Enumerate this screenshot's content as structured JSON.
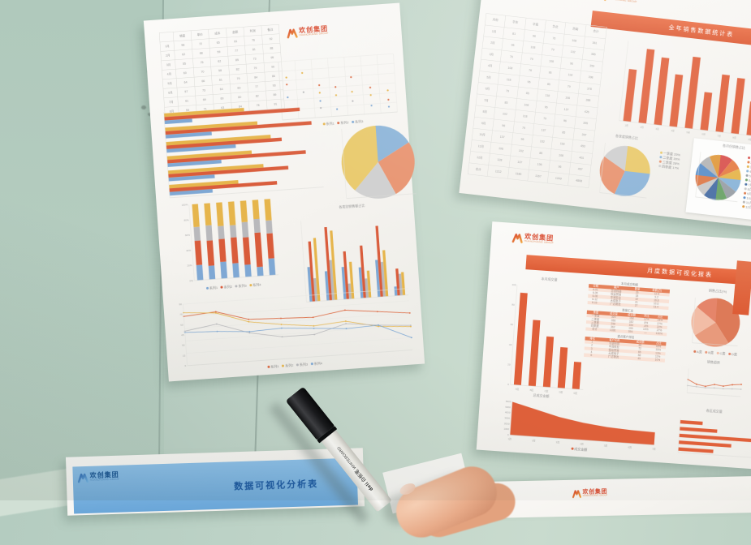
{
  "logo": {
    "name": "欢创集团",
    "tagline": "HUANCHUANG GROUP"
  },
  "colors": {
    "wall": "#bcd2c6",
    "accent_red": "#d8472b",
    "banner_orange": "#e06543",
    "chart_yellow": "#e6b54c",
    "chart_blue": "#7fa8d4",
    "chart_gray": "#b9b9bc",
    "chart_orange": "#dd6b44",
    "blue_banner": "#79b2e0",
    "blue_title": "#1d5fa8"
  },
  "left_paper": {
    "table": {
      "rows": [
        [
          "",
          "销量",
          "单价",
          "成本",
          "金额",
          "利润",
          "备注"
        ],
        [
          "1月",
          "58",
          "72",
          "65",
          "81",
          "76",
          "92"
        ],
        [
          "2月",
          "62",
          "68",
          "59",
          "77",
          "81",
          "88"
        ],
        [
          "3月",
          "55",
          "75",
          "62",
          "85",
          "73",
          "95"
        ],
        [
          "4月",
          "60",
          "70",
          "58",
          "82",
          "79",
          "90"
        ],
        [
          "5月",
          "64",
          "66",
          "61",
          "79",
          "84",
          "86"
        ],
        [
          "6月",
          "57",
          "73",
          "64",
          "83",
          "77",
          "93"
        ],
        [
          "7月",
          "61",
          "69",
          "60",
          "80",
          "82",
          "89"
        ],
        [
          "8月",
          "59",
          "71",
          "63",
          "84",
          "78",
          "91"
        ]
      ]
    },
    "scatter": {
      "type": "scatter",
      "grid": true,
      "points": [
        {
          "x": 6,
          "y": 28,
          "c": "#e6b54c"
        },
        {
          "x": 6,
          "y": 40,
          "c": "#dd6b44"
        },
        {
          "x": 6,
          "y": 62,
          "c": "#7fa8d4"
        },
        {
          "x": 20,
          "y": 22,
          "c": "#e6b54c"
        },
        {
          "x": 20,
          "y": 55,
          "c": "#b9b9bc"
        },
        {
          "x": 34,
          "y": 45,
          "c": "#dd6b44"
        },
        {
          "x": 34,
          "y": 58,
          "c": "#e6b54c"
        },
        {
          "x": 34,
          "y": 72,
          "c": "#7fa8d4"
        },
        {
          "x": 34,
          "y": 84,
          "c": "#b9b9bc"
        },
        {
          "x": 48,
          "y": 50,
          "c": "#dd6b44"
        },
        {
          "x": 48,
          "y": 64,
          "c": "#e6b54c"
        },
        {
          "x": 48,
          "y": 88,
          "c": "#7fa8d4"
        },
        {
          "x": 62,
          "y": 35,
          "c": "#dd6b44"
        },
        {
          "x": 62,
          "y": 60,
          "c": "#e6b54c"
        },
        {
          "x": 62,
          "y": 76,
          "c": "#b9b9bc"
        },
        {
          "x": 78,
          "y": 55,
          "c": "#dd6b44"
        },
        {
          "x": 78,
          "y": 68,
          "c": "#e6b54c"
        },
        {
          "x": 78,
          "y": 86,
          "c": "#7fa8d4"
        },
        {
          "x": 93,
          "y": 62,
          "c": "#e6b54c"
        },
        {
          "x": 93,
          "y": 78,
          "c": "#dd6b44"
        },
        {
          "x": 93,
          "y": 90,
          "c": "#7fa8d4"
        }
      ],
      "legend": [
        {
          "label": "系列1",
          "color": "#e6b54c"
        },
        {
          "label": "系列2",
          "color": "#dd6b44"
        },
        {
          "label": "系列3",
          "color": "#7fa8d4"
        }
      ]
    },
    "hbars": {
      "type": "groupedh",
      "groups": [
        [
          52,
          88,
          18
        ],
        [
          60,
          95,
          30
        ],
        [
          68,
          75,
          45
        ],
        [
          55,
          90,
          35
        ],
        [
          62,
          78,
          30
        ],
        [
          45,
          70,
          28
        ]
      ],
      "colors": [
        "#e6b54c",
        "#d95c3b",
        "#7fa8d4"
      ]
    },
    "pie": {
      "type": "pie",
      "caption": "各类别销售额占比",
      "slices": [
        {
          "value": 17,
          "color": "#8cb4d8"
        },
        {
          "value": 26,
          "color": "#e8936f"
        },
        {
          "value": 19,
          "color": "#cfcfcf"
        },
        {
          "value": 38,
          "color": "#e9c96a"
        }
      ]
    },
    "stacked": {
      "type": "stacked",
      "columns": [
        [
          20,
          32,
          18,
          30
        ],
        [
          18,
          33,
          20,
          29
        ],
        [
          22,
          30,
          17,
          31
        ],
        [
          19,
          34,
          16,
          31
        ],
        [
          16,
          36,
          20,
          28
        ],
        [
          12,
          45,
          18,
          25
        ],
        [
          22,
          33,
          17,
          28
        ]
      ],
      "colors": [
        "#7fa8d4",
        "#d95c3b",
        "#b9b9bc",
        "#e6b54c"
      ],
      "ylabels": [
        "100%",
        "80%",
        "60%",
        "40%",
        "20%",
        "0%"
      ],
      "legend": [
        {
          "label": "系列1",
          "color": "#7fa8d4"
        },
        {
          "label": "系列2",
          "color": "#d95c3b"
        },
        {
          "label": "系列3",
          "color": "#b9b9bc"
        },
        {
          "label": "系列4",
          "color": "#e6b54c"
        }
      ]
    },
    "grouped": {
      "type": "groupedv",
      "groups": [
        [
          45,
          78,
          30,
          82
        ],
        [
          38,
          95,
          52,
          90
        ],
        [
          42,
          62,
          20,
          48
        ],
        [
          40,
          68,
          25,
          35
        ],
        [
          48,
          92,
          45,
          60
        ],
        [
          12,
          35,
          28,
          30
        ]
      ],
      "colors": [
        "#7fa8d4",
        "#d95c3b",
        "#b9b9bc",
        "#e6b54c"
      ]
    },
    "lines": {
      "type": "lines",
      "grid": true,
      "ylabels": [
        "90",
        "75",
        "60",
        "45",
        "30",
        "15",
        "0"
      ],
      "series": [
        {
          "color": "#dd6b44",
          "values": [
            80,
            84,
            68,
            66,
            64,
            72,
            66,
            60
          ]
        },
        {
          "color": "#e6b54c",
          "values": [
            86,
            82,
            64,
            56,
            50,
            54,
            42,
            38
          ]
        },
        {
          "color": "#b9b9bc",
          "values": [
            56,
            64,
            46,
            36,
            36,
            50,
            44,
            40
          ]
        },
        {
          "color": "#7fa8d4",
          "values": [
            54,
            52,
            48,
            50,
            46,
            42,
            44,
            20
          ]
        }
      ],
      "legend": [
        {
          "label": "系列1",
          "color": "#dd6b44"
        },
        {
          "label": "系列2",
          "color": "#e6b54c"
        },
        {
          "label": "系列3",
          "color": "#b9b9bc"
        },
        {
          "label": "系列4",
          "color": "#7fa8d4"
        }
      ]
    }
  },
  "top_right_paper": {
    "banner_title": "全年销售数据统计表",
    "table": {
      "rows": [
        [
          "月份",
          "华东",
          "华南",
          "华北",
          "西南",
          "合计"
        ],
        [
          "1月",
          "81",
          "96",
          "76",
          "108",
          "361"
        ],
        [
          "2月",
          "96",
          "108",
          "79",
          "102",
          "385"
        ],
        [
          "3月",
          "76",
          "79",
          "108",
          "96",
          "359"
        ],
        [
          "4月",
          "108",
          "76",
          "96",
          "118",
          "398"
        ],
        [
          "5月",
          "118",
          "96",
          "85",
          "79",
          "378"
        ],
        [
          "6月",
          "79",
          "85",
          "118",
          "106",
          "388"
        ],
        [
          "7月",
          "85",
          "108",
          "96",
          "137",
          "426"
        ],
        [
          "8月",
          "102",
          "118",
          "79",
          "96",
          "395"
        ],
        [
          "9月",
          "96",
          "79",
          "137",
          "85",
          "397"
        ],
        [
          "10月",
          "137",
          "96",
          "102",
          "118",
          "453"
        ],
        [
          "11月",
          "106",
          "102",
          "85",
          "108",
          "401"
        ],
        [
          "12月",
          "128",
          "137",
          "106",
          "96",
          "467"
        ],
        [
          "合计",
          "1212",
          "1180",
          "1167",
          "1249",
          "4808"
        ]
      ]
    },
    "bars": {
      "type": "vbars",
      "values": [
        62,
        88,
        80,
        62,
        85,
        45,
        68,
        66,
        40
      ],
      "color": "#e0603a",
      "xlabels": [
        "1月",
        "2月",
        "3月",
        "4月",
        "5月",
        "6月",
        "7月",
        "8月",
        "9月"
      ]
    },
    "pie_left": {
      "type": "pie",
      "title": "各季度销售占比",
      "slices": [
        {
          "label": "一季度 25%",
          "value": 25,
          "color": "#e9c96a"
        },
        {
          "label": "二季度 30%",
          "value": 30,
          "color": "#8cb4d8"
        },
        {
          "label": "三季度 28%",
          "value": 28,
          "color": "#e8936f"
        },
        {
          "label": "四季度 17%",
          "value": 17,
          "color": "#cfcfcf"
        }
      ]
    },
    "pie_right": {
      "type": "pie",
      "title": "各月份销售占比",
      "slices": [
        {
          "label": "1月",
          "value": 9,
          "color": "#d9534f"
        },
        {
          "label": "2月",
          "value": 8,
          "color": "#e67e45"
        },
        {
          "label": "3月",
          "value": 8,
          "color": "#e6b54c"
        },
        {
          "label": "4月",
          "value": 9,
          "color": "#8ab4d8"
        },
        {
          "label": "5月",
          "value": 8,
          "color": "#9aa0a6"
        },
        {
          "label": "6月",
          "value": 8,
          "color": "#6ba368"
        },
        {
          "label": "7月",
          "value": 9,
          "color": "#4a6fa5"
        },
        {
          "label": "8月",
          "value": 8,
          "color": "#c9c9c9"
        },
        {
          "label": "9月",
          "value": 8,
          "color": "#dd7a4a"
        },
        {
          "label": "10月",
          "value": 9,
          "color": "#5b8fc9"
        },
        {
          "label": "11月",
          "value": 8,
          "color": "#b5b5b5"
        },
        {
          "label": "12月",
          "value": 8,
          "color": "#e09a3e"
        }
      ]
    }
  },
  "mid_right_paper": {
    "banner_title": "月度数据可视化报表",
    "bars": {
      "type": "vbars",
      "title": "本月成交量",
      "values": [
        95,
        68,
        52,
        42,
        28
      ],
      "color": "#e0603a",
      "xlabels": [
        "A区",
        "B区",
        "C区",
        "D区",
        "E区"
      ],
      "ylabels": [
        "100",
        "80",
        "60",
        "40",
        "20",
        "0"
      ]
    },
    "sections": [
      {
        "title": "本月成交明细",
        "header": [
          "日期",
          "客户",
          "数量",
          "金额(万)"
        ],
        "rows": [
          [
            "6-01",
            "华创科技",
            "25",
            "12.5"
          ],
          [
            "6-05",
            "恒远贸易",
            "18",
            "9.2"
          ],
          [
            "6-08",
            "中润实业",
            "32",
            "16.8"
          ],
          [
            "6-12",
            "天成电子",
            "21",
            "10.6"
          ],
          [
            "6-15",
            "广达物流",
            "27",
            "13.4"
          ]
        ]
      },
      {
        "title": "季度汇总",
        "header": [
          "季度",
          "成交量",
          "成交额",
          "环比",
          "占比"
        ],
        "rows": [
          [
            "一季度",
            "320",
            "168",
            "12%",
            "24%"
          ],
          [
            "二季度",
            "356",
            "182",
            "8%",
            "27%"
          ],
          [
            "三季度",
            "298",
            "154",
            "-6%",
            "22%"
          ],
          [
            "四季度",
            "362",
            "190",
            "10%",
            "27%"
          ],
          [
            "合计",
            "1336",
            "694",
            "—",
            "100%"
          ]
        ]
      },
      {
        "title": "重点客户排名",
        "header": [
          "排名",
          "客户名称",
          "成交额",
          "占比"
        ],
        "rows": [
          [
            "1",
            "华创科技",
            "86",
            "18%"
          ],
          [
            "2",
            "中润实业",
            "72",
            "15%"
          ],
          [
            "3",
            "恒远贸易",
            "65",
            "13%"
          ],
          [
            "4",
            "天成电子",
            "58",
            "12%"
          ],
          [
            "5",
            "广达物流",
            "49",
            "10%"
          ]
        ]
      }
    ],
    "pie": {
      "type": "pie",
      "title": "销售占比(%)",
      "slices": [
        {
          "label": "A类",
          "value": 40,
          "color": "#dd7a58"
        },
        {
          "label": "B类",
          "value": 25,
          "color": "#e89a7c"
        },
        {
          "label": "C类",
          "value": 20,
          "color": "#f2bda6"
        },
        {
          "label": "D类",
          "value": 15,
          "color": "#e5856a"
        }
      ],
      "legend": [
        {
          "label": "A类",
          "color": "#dd7a58"
        },
        {
          "label": "B类",
          "color": "#e89a7c"
        },
        {
          "label": "C类",
          "color": "#f2bda6"
        },
        {
          "label": "D类",
          "color": "#e5856a"
        }
      ]
    },
    "trend": {
      "type": "lines",
      "title": "销售趋势",
      "series": [
        {
          "color": "#dd6b44",
          "values": [
            55,
            38,
            32,
            42,
            38,
            46,
            50
          ]
        },
        {
          "color": "#c9c9c9",
          "values": [
            30,
            28,
            26,
            28,
            27,
            29,
            30
          ]
        }
      ]
    },
    "area": {
      "type": "area",
      "title": "总成交金额",
      "values": [
        100,
        82,
        64,
        52,
        44,
        40,
        38
      ],
      "color": "#e0603a",
      "ylabels": [
        "6000",
        "5000",
        "4000",
        "3000",
        "2000",
        "1000",
        "0"
      ],
      "xlabels": [
        "1周",
        "2周",
        "3周",
        "4周",
        "5周",
        "6周",
        "7周"
      ],
      "legend": [
        {
          "label": "成交金额",
          "color": "#e0603a"
        }
      ]
    },
    "hbars": {
      "type": "hbars",
      "title": "各区成交量",
      "values": [
        18,
        30,
        95,
        42,
        28
      ],
      "color": "#e0603a"
    }
  },
  "blue_paper": {
    "title": "数据可视化分析表"
  },
  "marker": {
    "brand": "deli",
    "label": "白板笔",
    "label_en": "WHITEBOARD"
  }
}
